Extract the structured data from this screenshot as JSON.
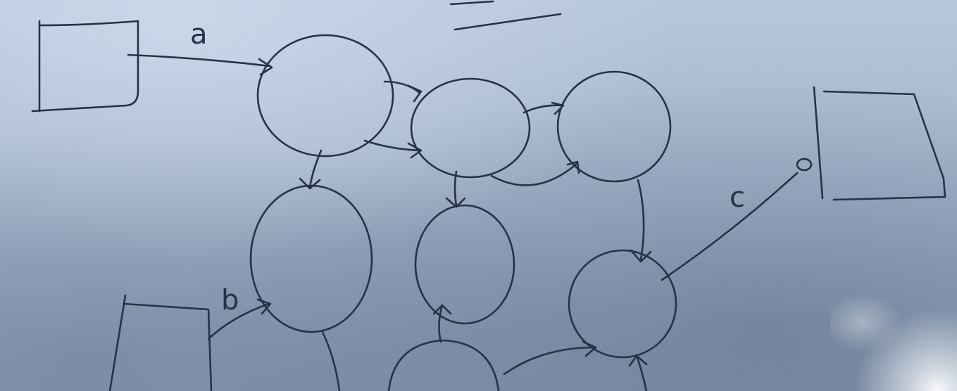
{
  "labels": {
    "a": "a",
    "b": "b",
    "c": "c"
  },
  "colors": {
    "ink": "#263246",
    "board": "#a8b9d0"
  }
}
